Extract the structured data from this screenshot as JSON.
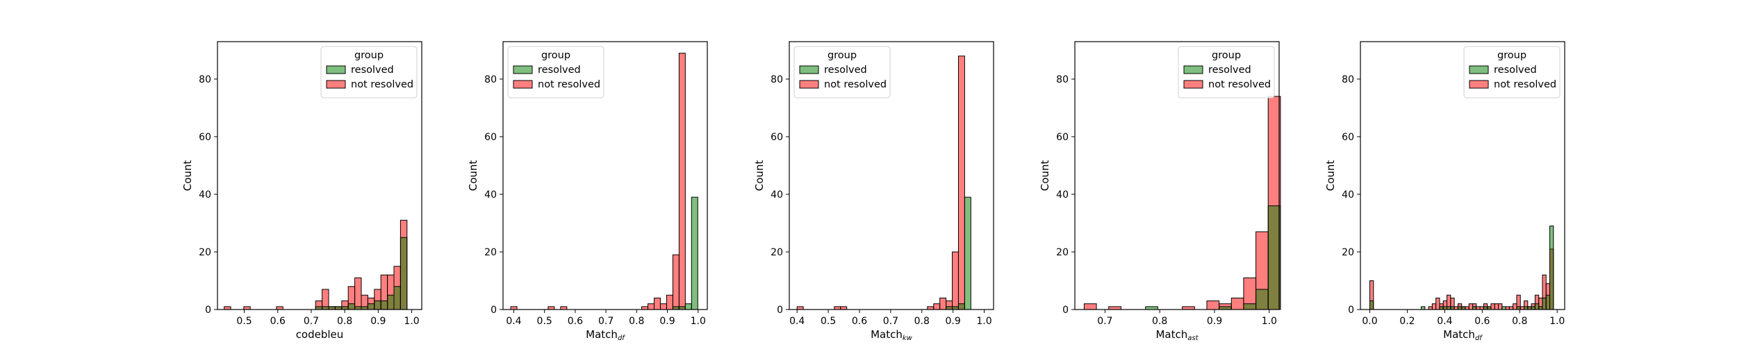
{
  "chart_data": [
    {
      "type": "histogram",
      "xlabel": "codebleu",
      "xlabel_main": "codebleu",
      "xlabel_sub": "",
      "ylabel": "Count",
      "xlim": [
        0.42,
        1.03
      ],
      "ylim": [
        0,
        93
      ],
      "xticks": [
        0.5,
        0.6,
        0.7,
        0.8,
        0.9,
        1.0
      ],
      "xtick_labels": [
        "0.5",
        "0.6",
        "0.7",
        "0.8",
        "0.9",
        "1.0"
      ],
      "yticks": [
        0,
        20,
        40,
        60,
        80
      ],
      "ytick_labels": [
        "0",
        "20",
        "40",
        "60",
        "80"
      ],
      "legend": {
        "title": "group",
        "position": "upper right",
        "entries": [
          "resolved",
          "not resolved"
        ]
      },
      "bin_start": 0.44,
      "bin_width": 0.0195,
      "series": [
        {
          "name": "resolved",
          "color": "#008000",
          "values": [
            0,
            0,
            0,
            0,
            0,
            0,
            0,
            0,
            0,
            0,
            0,
            0,
            0,
            0,
            1,
            1,
            1,
            1,
            1,
            2,
            1,
            1,
            2,
            3,
            3,
            5,
            8,
            25
          ]
        },
        {
          "name": "not resolved",
          "color": "#ff0000",
          "values": [
            1,
            0,
            0,
            1,
            0,
            0,
            0,
            0,
            1,
            0,
            0,
            0,
            0,
            0,
            3,
            7,
            1,
            1,
            3,
            8,
            11,
            5,
            4,
            7,
            12,
            12,
            15,
            31
          ]
        }
      ]
    },
    {
      "type": "histogram",
      "xlabel": "Match_df",
      "xlabel_main": "Match",
      "xlabel_sub": "df",
      "ylabel": "Count",
      "xlim": [
        0.365,
        1.03
      ],
      "ylim": [
        0,
        93
      ],
      "xticks": [
        0.4,
        0.5,
        0.6,
        0.7,
        0.8,
        0.9,
        1.0
      ],
      "xtick_labels": [
        "0.4",
        "0.5",
        "0.6",
        "0.7",
        "0.8",
        "0.9",
        "1.0"
      ],
      "yticks": [
        0,
        20,
        40,
        60,
        80
      ],
      "ytick_labels": [
        "0",
        "20",
        "40",
        "60",
        "80"
      ],
      "legend": {
        "title": "group",
        "position": "upper left",
        "entries": [
          "resolved",
          "not resolved"
        ]
      },
      "bin_start": 0.39,
      "bin_width": 0.0203,
      "series": [
        {
          "name": "resolved",
          "color": "#008000",
          "values": [
            0,
            0,
            0,
            0,
            0,
            0,
            0,
            0,
            0,
            0,
            0,
            0,
            0,
            0,
            0,
            0,
            0,
            0,
            0,
            0,
            0,
            0,
            0,
            0,
            0,
            0,
            1,
            1,
            2,
            39
          ]
        },
        {
          "name": "not resolved",
          "color": "#ff0000",
          "values": [
            1,
            0,
            0,
            0,
            0,
            0,
            1,
            0,
            1,
            0,
            0,
            0,
            0,
            0,
            0,
            0,
            0,
            0,
            0,
            0,
            0,
            1,
            2,
            4,
            2,
            5,
            19,
            89,
            0,
            0
          ]
        }
      ]
    },
    {
      "type": "histogram",
      "xlabel": "Match_kw",
      "xlabel_main": "Match",
      "xlabel_sub": "kw",
      "ylabel": "Count",
      "xlim": [
        0.375,
        1.03
      ],
      "ylim": [
        0,
        93
      ],
      "xticks": [
        0.4,
        0.5,
        0.6,
        0.7,
        0.8,
        0.9,
        1.0
      ],
      "xtick_labels": [
        "0.4",
        "0.5",
        "0.6",
        "0.7",
        "0.8",
        "0.9",
        "1.0"
      ],
      "yticks": [
        0,
        20,
        40,
        60,
        80
      ],
      "ytick_labels": [
        "0",
        "20",
        "40",
        "60",
        "80"
      ],
      "legend": {
        "title": "group",
        "position": "upper left",
        "entries": [
          "resolved",
          "not resolved"
        ]
      },
      "bin_start": 0.4,
      "bin_width": 0.0199,
      "series": [
        {
          "name": "resolved",
          "color": "#008000",
          "values": [
            0,
            0,
            0,
            0,
            0,
            0,
            0,
            0,
            0,
            0,
            0,
            0,
            0,
            0,
            0,
            0,
            0,
            0,
            0,
            0,
            0,
            0,
            0,
            0,
            1,
            1,
            2,
            39,
            0,
            0
          ]
        },
        {
          "name": "not resolved",
          "color": "#ff0000",
          "values": [
            1,
            0,
            0,
            0,
            0,
            0,
            1,
            1,
            0,
            0,
            0,
            0,
            0,
            0,
            0,
            0,
            0,
            0,
            0,
            0,
            0,
            1,
            2,
            4,
            3,
            20,
            88,
            0,
            0,
            0
          ]
        }
      ]
    },
    {
      "type": "histogram",
      "xlabel": "Match_ast",
      "xlabel_main": "Match",
      "xlabel_sub": "ast",
      "ylabel": "Count",
      "xlim": [
        0.645,
        1.018
      ],
      "ylim": [
        0,
        93
      ],
      "xticks": [
        0.7,
        0.8,
        0.9,
        1.0
      ],
      "xtick_labels": [
        "0.7",
        "0.8",
        "0.9",
        "1.0"
      ],
      "yticks": [
        0,
        20,
        40,
        60,
        80
      ],
      "ytick_labels": [
        "0",
        "20",
        "40",
        "60",
        "80"
      ],
      "legend": {
        "title": "group",
        "position": "upper right",
        "entries": [
          "resolved",
          "not resolved"
        ]
      },
      "bin_start": 0.662,
      "bin_width": 0.0224,
      "series": [
        {
          "name": "resolved",
          "color": "#008000",
          "values": [
            0,
            0,
            0,
            0,
            0,
            1,
            0,
            0,
            0,
            0,
            0,
            1,
            0,
            2,
            7,
            36
          ]
        },
        {
          "name": "not resolved",
          "color": "#ff0000",
          "values": [
            2,
            0,
            1,
            0,
            0,
            0,
            0,
            0,
            1,
            0,
            3,
            2,
            4,
            11,
            27,
            74
          ]
        }
      ]
    },
    {
      "type": "histogram",
      "xlabel": "Match_df",
      "xlabel_main": "Match",
      "xlabel_sub": "df",
      "ylabel": "Count",
      "xlim": [
        -0.05,
        1.04
      ],
      "ylim": [
        0,
        93
      ],
      "xticks": [
        0.0,
        0.2,
        0.4,
        0.6,
        0.8,
        1.0
      ],
      "xtick_labels": [
        "0.0",
        "0.2",
        "0.4",
        "0.6",
        "0.8",
        "1.0"
      ],
      "yticks": [
        0,
        20,
        40,
        60,
        80
      ],
      "ytick_labels": [
        "0",
        "20",
        "40",
        "60",
        "80"
      ],
      "legend": {
        "title": "group",
        "position": "upper right",
        "entries": [
          "resolved",
          "not resolved"
        ]
      },
      "bin_start": 0.0,
      "bin_width": 0.0196,
      "series": [
        {
          "name": "resolved",
          "color": "#008000",
          "values": [
            3,
            0,
            0,
            0,
            0,
            0,
            0,
            0,
            0,
            0,
            0,
            0,
            0,
            0,
            1,
            0,
            0,
            0,
            0,
            1,
            1,
            1,
            1,
            0,
            1,
            1,
            0,
            0,
            1,
            0,
            0,
            1,
            1,
            0,
            0,
            0,
            1,
            0,
            0,
            0,
            1,
            0,
            1,
            1,
            1,
            2,
            1,
            4,
            5,
            29
          ]
        },
        {
          "name": "not resolved",
          "color": "#ff0000",
          "values": [
            10,
            0,
            0,
            0,
            0,
            0,
            0,
            0,
            0,
            0,
            0,
            0,
            0,
            0,
            0,
            0,
            1,
            2,
            4,
            2,
            3,
            5,
            4,
            1,
            2,
            1,
            1,
            2,
            2,
            1,
            1,
            2,
            1,
            2,
            2,
            2,
            0,
            1,
            1,
            2,
            5,
            1,
            3,
            1,
            2,
            5,
            4,
            12,
            9,
            21
          ]
        }
      ]
    }
  ]
}
